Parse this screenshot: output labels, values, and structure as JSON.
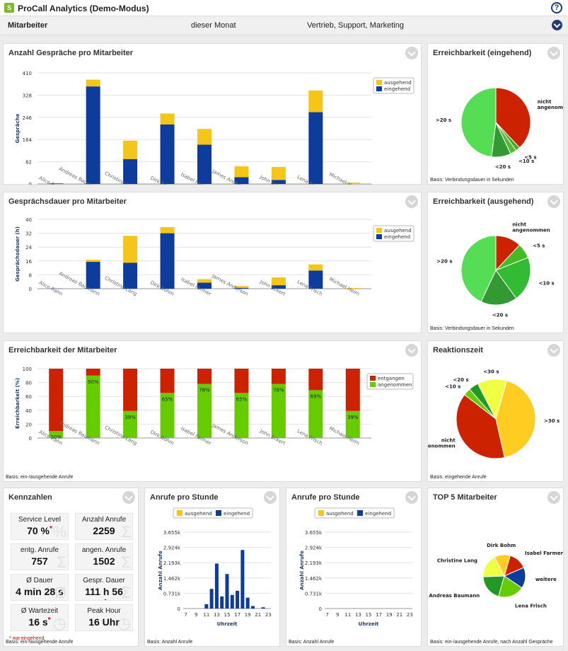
{
  "app": {
    "title": "ProCall Analytics (Demo-Modus)",
    "help": "?"
  },
  "filter": {
    "employee_label": "Mitarbeiter",
    "period": "dieser Monat",
    "departments": "Vertrieb, Support, Marketing"
  },
  "colors": {
    "out": "#f5c518",
    "in": "#0d3c9c",
    "missed": "#cc2200",
    "accepted": "#66cc00"
  },
  "p1": {
    "title": "Anzahl Gespräche pro Mitarbeiter",
    "ylabel": "Gespräche",
    "legend": [
      "ausgehend",
      "eingehend"
    ]
  },
  "p2": {
    "title": "Gesprächsdauer pro Mitarbeiter",
    "ylabel": "Gesprächsdauer (h)",
    "legend": [
      "ausgehend",
      "eingehend"
    ]
  },
  "p3": {
    "title": "Erreichbarkeit der Mitarbeiter",
    "ylabel": "Erreichbarkeit (%)",
    "legend": [
      "entgangen",
      "angenommen"
    ],
    "footer": "Basis: ein-/ausgehende Anrufe"
  },
  "p4": {
    "title": "Erreichbarkeit (eingehend)",
    "footer": "Basis: Verbindungsdauer in Sekunden"
  },
  "p5": {
    "title": "Erreichbarkeit (ausgehend)",
    "footer": "Basis: Verbindungsdauer in Sekunden"
  },
  "p6": {
    "title": "Reaktionszeit",
    "footer": "Basis: eingehende Anrufe"
  },
  "kpi": {
    "title": "Kennzahlen",
    "note": "* nur eingehend",
    "footer": "Basis: ein-/ausgehende Anrufe",
    "items": [
      {
        "label": "Service Level",
        "value": "70 %"
      },
      {
        "label": "Anzahl Anrufe",
        "value": "2259"
      },
      {
        "label": "entg. Anrufe",
        "value": "757"
      },
      {
        "label": "angen. Anrufe",
        "value": "1502"
      },
      {
        "label": "Ø Dauer",
        "value": "4 min 28 s"
      },
      {
        "label": "Gespr. Dauer",
        "value": "111 h 56 min"
      },
      {
        "label": "Ø Wartezeit",
        "value": "16 s"
      },
      {
        "label": "Peak Hour",
        "value": "16 Uhr"
      }
    ]
  },
  "p7": {
    "title": "Anrufe pro Stunde",
    "legend": [
      "ausgehend",
      "eingehend"
    ],
    "ylabel": "Anzahl Anrufe",
    "xlabel": "Uhrzeit",
    "footer": "Basis: Anzahl Anrufe"
  },
  "p8": {
    "title": "Anrufe pro Stunde",
    "legend": [
      "ausgehend",
      "eingehend"
    ],
    "ylabel": "Anzahl Anrufe",
    "xlabel": "Uhrzeit",
    "footer": "Basis: Anzahl Anrufe"
  },
  "p9": {
    "title": "TOP 5 Mitarbeiter",
    "footer": "Basis: ein-/ausgehende Anrufe, nach Anzahl Gespräche"
  },
  "chart_data": [
    {
      "id": "calls",
      "type": "bar",
      "stacked": true,
      "categories": [
        "Alice Rahn",
        "Andreas Baumann",
        "Christine Lang",
        "Dirk Bohm",
        "Isabel Farmer",
        "James Anderson",
        "John Eckert",
        "Lena Frisch",
        "Michael Heim"
      ],
      "series": [
        {
          "name": "eingehend",
          "values": [
            2,
            360,
            92,
            220,
            145,
            25,
            15,
            265,
            0
          ]
        },
        {
          "name": "ausgehend",
          "values": [
            0,
            25,
            68,
            40,
            58,
            40,
            48,
            80,
            5
          ]
        }
      ],
      "yticks": [
        "0",
        "82",
        "164",
        "246",
        "328",
        "410"
      ],
      "ylim": [
        0,
        410
      ]
    },
    {
      "id": "duration",
      "type": "bar",
      "stacked": true,
      "categories": [
        "Alice Rahn",
        "Andreas Baumann",
        "Christine Lang",
        "Dirk Bohm",
        "Isabel Farmer",
        "James Anderson",
        "John Eckert",
        "Lena Frisch",
        "Michael Heim"
      ],
      "series": [
        {
          "name": "eingehend",
          "values": [
            0.1,
            15.5,
            15,
            32,
            3.5,
            0.5,
            2,
            10.5,
            0
          ],
          "colorKey": "in"
        },
        {
          "name": "ausgehend",
          "values": [
            0,
            1.2,
            15.5,
            3.5,
            2,
            1,
            4.5,
            3.5,
            0.4
          ]
        }
      ],
      "yticks": [
        "0",
        "8",
        "16",
        "24",
        "32",
        "40"
      ],
      "ylim": [
        0,
        40
      ]
    },
    {
      "id": "reach",
      "type": "bar",
      "stacked": true,
      "categories": [
        "Alice Rahn",
        "Andreas Baumann",
        "Christine Lang",
        "Dirk Bohm",
        "Isabel Farmer",
        "James Anderson",
        "John Eckert",
        "Lena Frisch",
        "Michael Heim"
      ],
      "series": [
        {
          "name": "angenommen",
          "values": [
            10,
            90,
            39,
            65,
            78,
            65,
            78,
            69,
            39
          ]
        },
        {
          "name": "entgangen",
          "values": [
            90,
            10,
            61,
            35,
            22,
            35,
            22,
            31,
            61
          ]
        }
      ],
      "labels": [
        "10%",
        "90%",
        "39%",
        "65%",
        "78%",
        "65%",
        "78%",
        "69%",
        "39%"
      ],
      "yticks": [
        "0",
        "20",
        "40",
        "60",
        "80",
        "100"
      ],
      "ylim": [
        0,
        100
      ]
    },
    {
      "id": "pie_in",
      "type": "pie",
      "slices": [
        {
          "label": "nicht angenommen",
          "value": 38,
          "color": "#cc2200"
        },
        {
          "label": "<5 s",
          "value": 2,
          "color": "#44aa22"
        },
        {
          "label": "<10 s",
          "value": 3,
          "color": "#55bb33"
        },
        {
          "label": "<20 s",
          "value": 9,
          "color": "#339933"
        },
        {
          "label": ">20 s",
          "value": 48,
          "color": "#55dd55"
        }
      ]
    },
    {
      "id": "pie_out",
      "type": "pie",
      "slices": [
        {
          "label": "nicht angenommen",
          "value": 12,
          "color": "#cc2200"
        },
        {
          "label": "<5 s",
          "value": 7,
          "color": "#44bb22"
        },
        {
          "label": "<10 s",
          "value": 21,
          "color": "#33bb33"
        },
        {
          "label": "<20 s",
          "value": 17,
          "color": "#339933"
        },
        {
          "label": ">20 s",
          "value": 43,
          "color": "#55dd55"
        }
      ]
    },
    {
      "id": "pie_react",
      "type": "pie",
      "slices": [
        {
          "label": ">30 s",
          "value": 42,
          "color": "#ffcc22"
        },
        {
          "label": "nicht angenommen",
          "value": 39,
          "color": "#cc2200"
        },
        {
          "label": "<10 s",
          "value": 3,
          "color": "#66cc00"
        },
        {
          "label": "<20 s",
          "value": 4,
          "color": "#229922"
        },
        {
          "label": "<30 s",
          "value": 12,
          "color": "#eeff44"
        }
      ]
    },
    {
      "id": "hour1",
      "type": "bar",
      "stacked": true,
      "x": [
        "7",
        "8",
        "9",
        "10",
        "11",
        "12",
        "13",
        "14",
        "15",
        "16",
        "17",
        "18",
        "19",
        "20",
        "21",
        "22",
        "23"
      ],
      "series": [
        {
          "name": "eingehend",
          "values": [
            0,
            0,
            0,
            0,
            210,
            940,
            2150,
            580,
            1650,
            650,
            850,
            2800,
            520,
            120,
            0,
            60,
            0
          ]
        },
        {
          "name": "ausgehend",
          "values": [
            0,
            0,
            0,
            0,
            0,
            0,
            0,
            0,
            0,
            0,
            0,
            0,
            0,
            0,
            0,
            0,
            0
          ]
        }
      ],
      "xticks": [
        "7",
        "9",
        "11",
        "13",
        "15",
        "17",
        "19",
        "21",
        "23"
      ],
      "yticks": [
        "0",
        "0.731k",
        "1.462k",
        "2.193k",
        "2.924k",
        "3.655k"
      ],
      "ylim": [
        0,
        3655
      ]
    },
    {
      "id": "hour2",
      "type": "bar",
      "stacked": true,
      "x": [
        "7",
        "8",
        "9",
        "10",
        "11",
        "12",
        "13",
        "14",
        "15",
        "16",
        "17",
        "18",
        "19",
        "20",
        "21",
        "22",
        "23"
      ],
      "series": [
        {
          "name": "eingehend",
          "values": [
            0,
            0,
            0,
            0,
            0,
            0,
            0,
            0,
            0,
            0,
            0,
            0,
            0,
            0,
            0,
            0,
            0
          ]
        },
        {
          "name": "ausgehend",
          "values": [
            0,
            0,
            0,
            0,
            0,
            0,
            0,
            0,
            0,
            0,
            0,
            0,
            0,
            0,
            0,
            0,
            0
          ]
        }
      ],
      "xticks": [
        "7",
        "9",
        "11",
        "13",
        "15",
        "17",
        "19",
        "21",
        "23"
      ],
      "yticks": [
        "0",
        "0.731k",
        "1.462k",
        "2.193k",
        "2.924k",
        "3.655k"
      ],
      "ylim": [
        0,
        3655
      ]
    },
    {
      "id": "pie_top5",
      "type": "pie",
      "slices": [
        {
          "label": "Isabel Farmer",
          "value": 14,
          "color": "#cc2200"
        },
        {
          "label": "weitere",
          "value": 16,
          "color": "#0d3c9c"
        },
        {
          "label": "Lena Frisch",
          "value": 20,
          "color": "#66cc00"
        },
        {
          "label": "Andreas Baumann",
          "value": 20,
          "color": "#229922"
        },
        {
          "label": "Christine Lang",
          "value": 18,
          "color": "#eeff44"
        },
        {
          "label": "Dirk Bohm",
          "value": 12,
          "color": "#ffcc22"
        }
      ]
    }
  ]
}
